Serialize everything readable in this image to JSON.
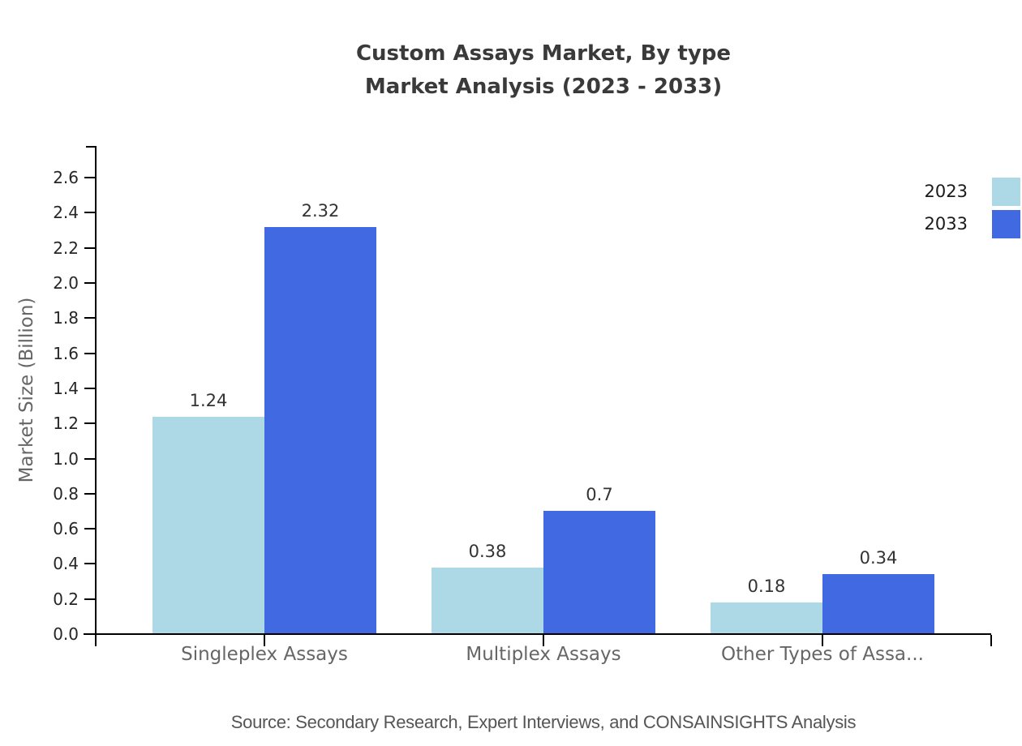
{
  "title": {
    "line1": "Custom Assays Market, By type",
    "line2": "Market Analysis (2023 - 2033)"
  },
  "legend": [
    {
      "label": "2023",
      "color": "#ADD8E6"
    },
    {
      "label": "2033",
      "color": "#4169E1"
    }
  ],
  "source": "Source: Secondary Research, Expert Interviews, and CONSAINSIGHTS Analysis",
  "chart_data": {
    "type": "bar",
    "title": "Custom Assays Market, By type — Market Analysis (2023 - 2033)",
    "categories": [
      "Singleplex Assays",
      "Multiplex Assays",
      "Other Types of Assa..."
    ],
    "series": [
      {
        "name": "2023",
        "color": "#ADD8E6",
        "values": [
          1.24,
          0.38,
          0.18
        ],
        "labels": [
          "1.24",
          "0.38",
          "0.18"
        ]
      },
      {
        "name": "2033",
        "color": "#4169E1",
        "values": [
          2.32,
          0.7,
          0.34
        ],
        "labels": [
          "2.32",
          "0.7",
          "0.34"
        ]
      }
    ],
    "xlabel": "",
    "ylabel": "Market Size (Billion)",
    "ylim": [
      0.0,
      2.7
    ],
    "yticks": [
      "0.0",
      "0.2",
      "0.4",
      "0.6",
      "0.8",
      "1.0",
      "1.2",
      "1.4",
      "1.6",
      "1.8",
      "2.0",
      "2.2",
      "2.4",
      "2.6"
    ],
    "grid": false,
    "legend_position": "right",
    "value_labels_shown": true
  }
}
